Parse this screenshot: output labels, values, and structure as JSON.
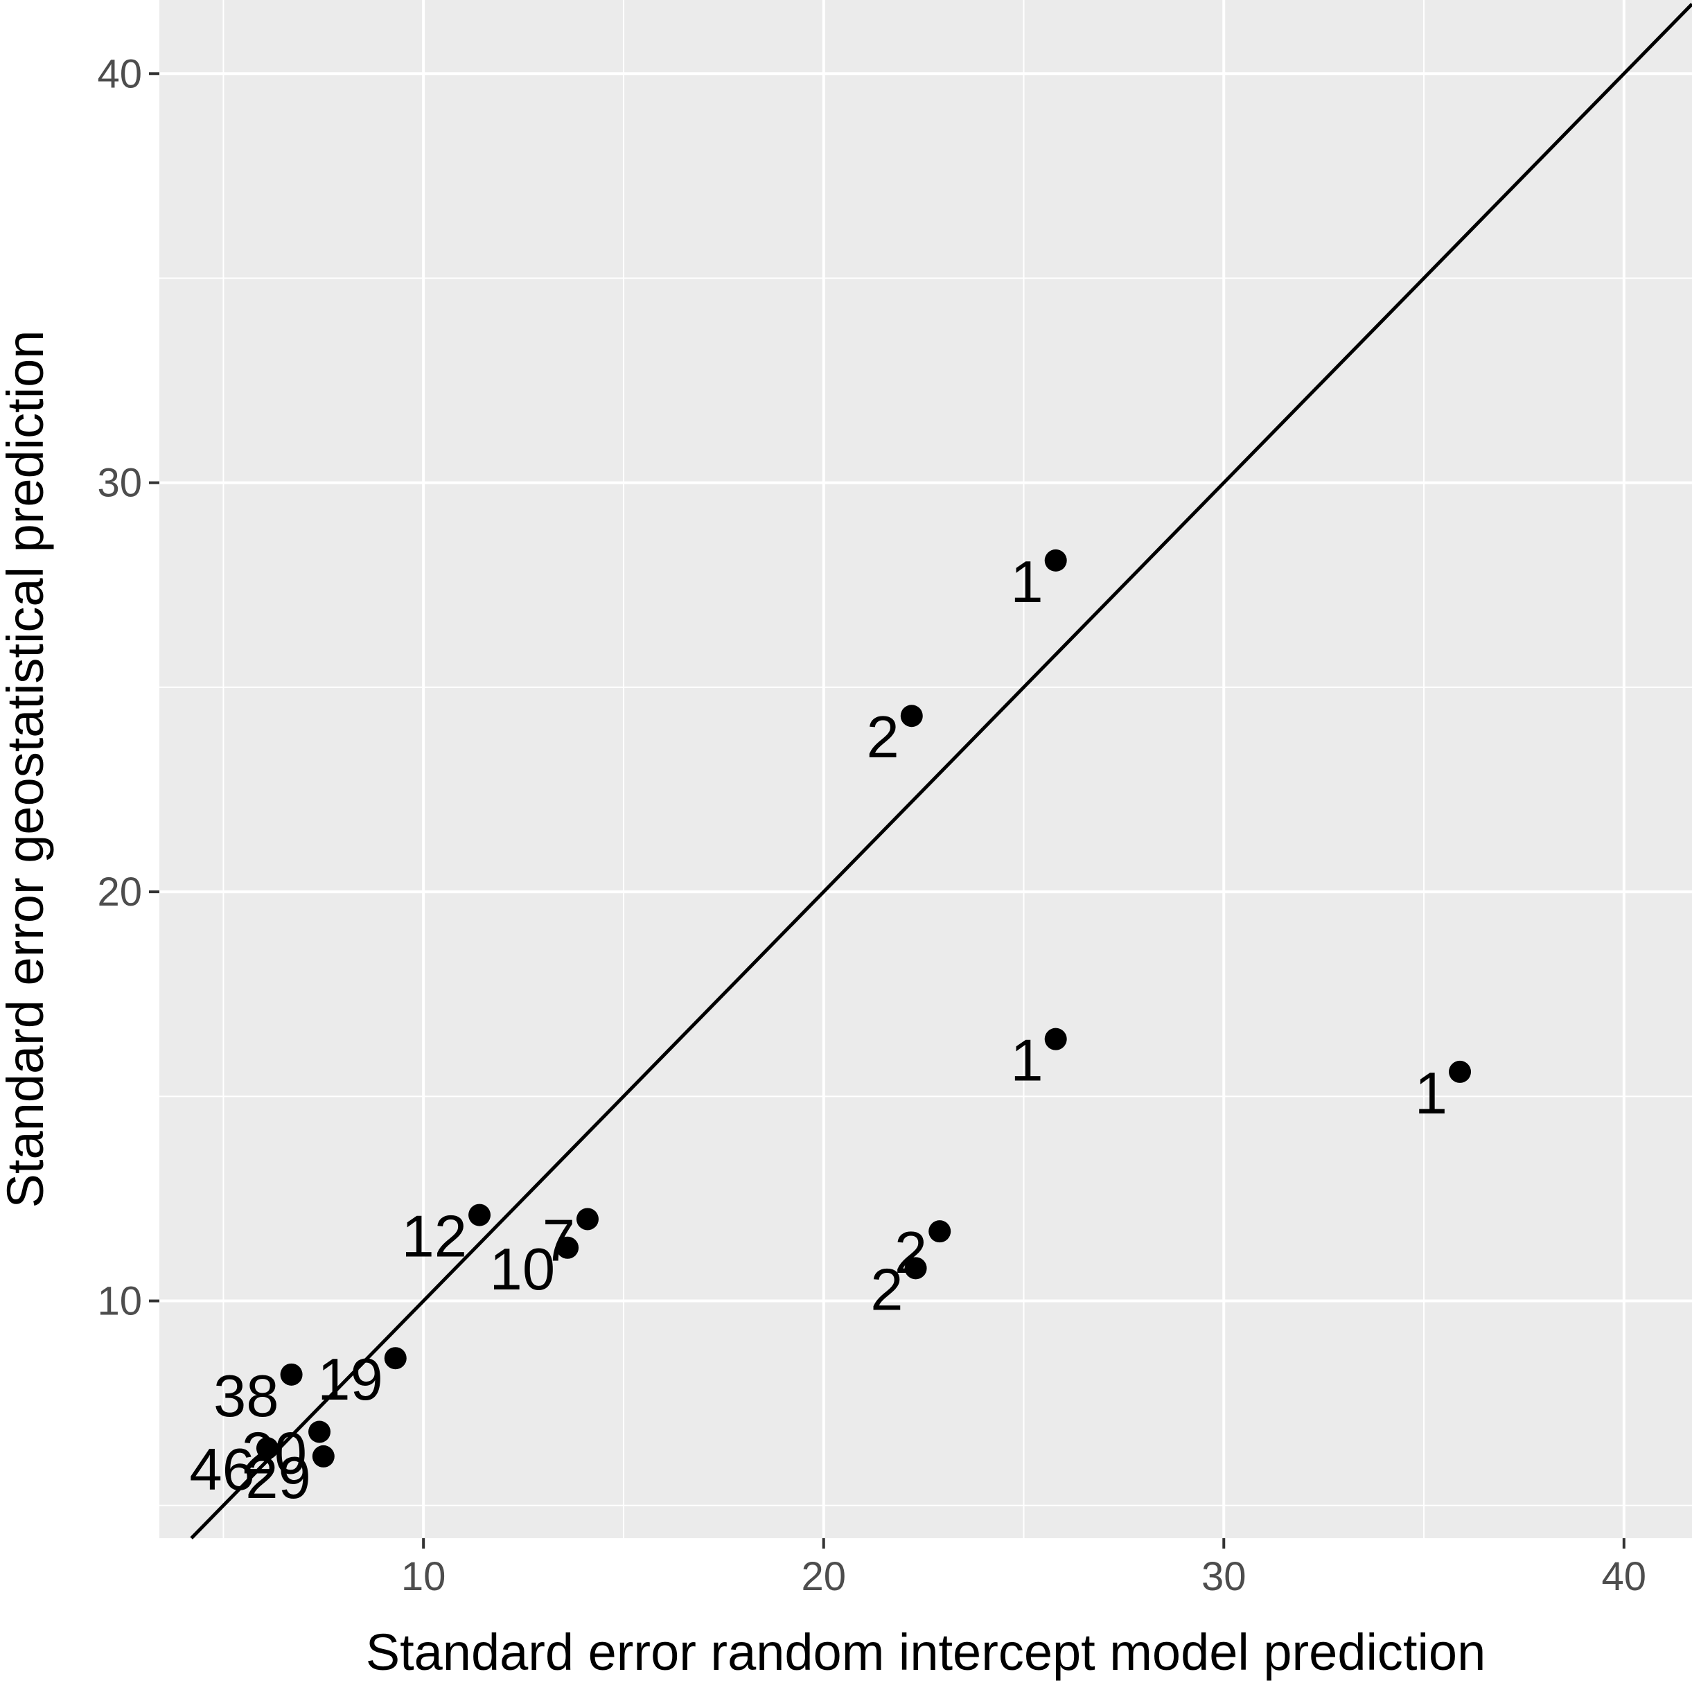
{
  "chart_data": {
    "type": "scatter",
    "xlabel": "Standard error random intercept model prediction",
    "ylabel": "Standard error geostatistical prediction",
    "xlim": [
      3.4,
      41.7
    ],
    "ylim": [
      4.2,
      41.8
    ],
    "x_ticks": [
      10,
      20,
      30,
      40
    ],
    "y_ticks": [
      10,
      20,
      30,
      40
    ],
    "x_tick_labels": [
      "10",
      "20",
      "30",
      "40"
    ],
    "y_tick_labels": [
      "10",
      "20",
      "30",
      "40"
    ],
    "grid": true,
    "reference_line": "y = x",
    "colors": {
      "panel": "#ebebeb",
      "grid": "#ffffff",
      "points": "#000000",
      "line": "#000000",
      "tick_text": "#4d4d4d",
      "title_text": "#000000"
    },
    "points": [
      {
        "x": 25.8,
        "y": 28.1,
        "label": "1"
      },
      {
        "x": 22.2,
        "y": 24.3,
        "label": "2"
      },
      {
        "x": 25.8,
        "y": 16.4,
        "label": "1"
      },
      {
        "x": 35.9,
        "y": 15.6,
        "label": "1"
      },
      {
        "x": 22.9,
        "y": 11.7,
        "label": "2"
      },
      {
        "x": 22.3,
        "y": 10.8,
        "label": "2"
      },
      {
        "x": 11.4,
        "y": 12.1,
        "label": "12"
      },
      {
        "x": 14.1,
        "y": 12.0,
        "label": "7"
      },
      {
        "x": 13.6,
        "y": 11.3,
        "label": "10"
      },
      {
        "x": 9.3,
        "y": 8.6,
        "label": "19"
      },
      {
        "x": 6.7,
        "y": 8.2,
        "label": "38"
      },
      {
        "x": 7.4,
        "y": 6.8,
        "label": "20"
      },
      {
        "x": 6.1,
        "y": 6.4,
        "label": "46"
      },
      {
        "x": 7.5,
        "y": 6.2,
        "label": "29"
      }
    ]
  }
}
